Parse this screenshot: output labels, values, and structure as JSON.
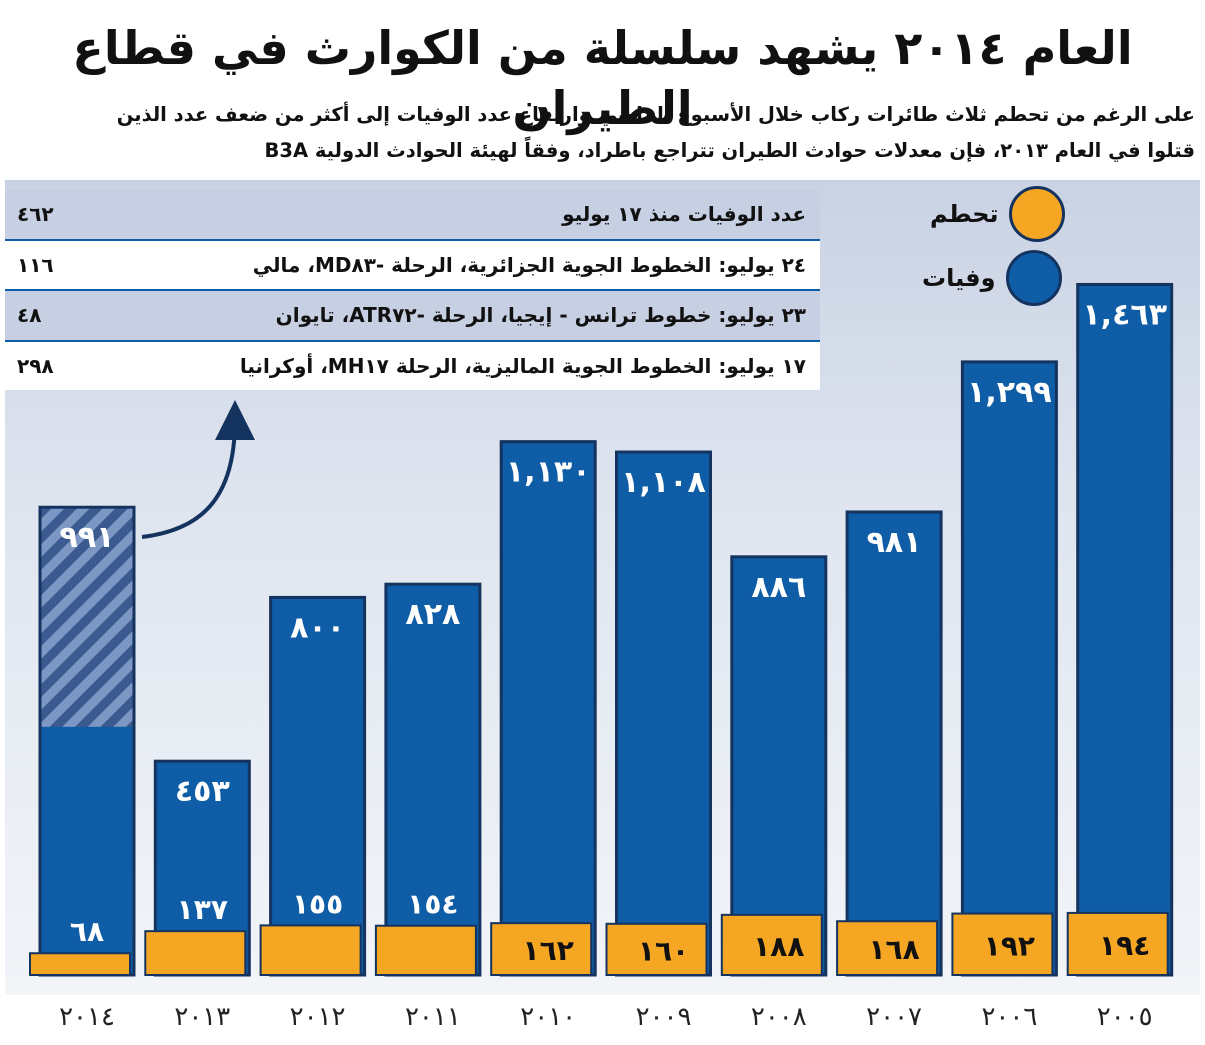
{
  "header": {
    "title": "العام ٢٠١٤ يشهد سلسلة من الكوارث في قطاع الطيران",
    "subtitle_line1": "على الرغم من تحطم ثلاث طائرات ركاب خلال الأسبوع الماضي وارتفاع عدد الوفيات إلى أكثر من ضعف عدد الذين",
    "subtitle_line2": "قتلوا في العام ٢٠١٣، فإن معدلات حوادث الطيران تتراجع باطراد، وفقاً لهيئة الحوادث الدولية B3A"
  },
  "legend": {
    "crash_label": "تحطم",
    "deaths_label": "وفيات"
  },
  "incidents_table": {
    "rows": [
      {
        "label": "عدد الوفيات منذ ١٧ يوليو",
        "value": "٤٦٢"
      },
      {
        "label": "٢٤ يوليو: الخطوط الجوية الجزائرية، الرحلة -MD٨٣، مالي",
        "value": "١١٦"
      },
      {
        "label": "٢٣ يوليو: خطوط ترانس - إيجيا، الرحلة -ATR٧٢، تايوان",
        "value": "٤٨"
      },
      {
        "label": "١٧ يوليو: الخطوط الجوية الماليزية، الرحلة MH١٧، أوكرانيا",
        "value": "٢٩٨"
      }
    ]
  },
  "chart_data": {
    "type": "bar",
    "categories": [
      "٢٠١٤",
      "٢٠١٣",
      "٢٠١٢",
      "٢٠١١",
      "٢٠١٠",
      "٢٠٠٩",
      "٢٠٠٨",
      "٢٠٠٧",
      "٢٠٠٦",
      "٢٠٠٥"
    ],
    "series": [
      {
        "name": "وفيات",
        "values": [
          991,
          453,
          800,
          828,
          1130,
          1108,
          886,
          981,
          1299,
          1463
        ],
        "labels": [
          "٩٩١",
          "٤٥٣",
          "٨٠٠",
          "٨٢٨",
          "١,١٣٠",
          "١,١٠٨",
          "٨٨٦",
          "٩٨١",
          "١,٢٩٩",
          "١,٤٦٣"
        ]
      },
      {
        "name": "تحطم",
        "values": [
          68,
          137,
          155,
          154,
          162,
          160,
          188,
          168,
          192,
          194
        ],
        "labels": [
          "٦٨",
          "١٣٧",
          "١٥٥",
          "١٥٤",
          "١٦٢",
          "١٦٠",
          "١٨٨",
          "١٦٨",
          "١٩٢",
          "١٩٤"
        ]
      }
    ],
    "highlighted_portion": {
      "category": "٢٠١٤",
      "value": 462
    },
    "colors": {
      "deaths": "#0f5da6",
      "deaths_hatch": "#3b5a90",
      "crashes": "#f5a623",
      "outline": "#14335e"
    },
    "title": "",
    "xlabel": "",
    "ylabel": "",
    "legend_position": "top-right",
    "grid": false
  }
}
